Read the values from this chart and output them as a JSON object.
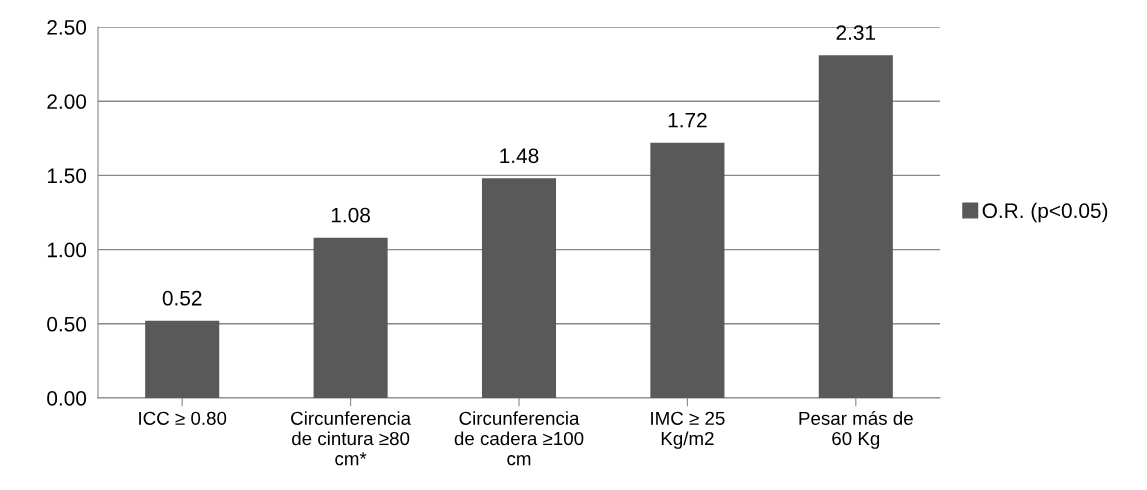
{
  "chart_data": {
    "type": "bar",
    "categories": [
      "ICC ≥ 0.80",
      "Circunferencia\nde cintura ≥80\ncm*",
      "Circunferencia\nde cadera ≥100\ncm",
      "IMC ≥ 25\nKg/m2",
      "Pesar más de\n60 Kg"
    ],
    "series": [
      {
        "name": "O.R. (p<0.05)",
        "color": "#595959",
        "values": [
          0.52,
          1.08,
          1.48,
          1.72,
          2.31
        ]
      }
    ],
    "value_labels": [
      "0.52",
      "1.08",
      "1.48",
      "1.72",
      "2.31"
    ],
    "ylim": [
      0,
      2.5
    ],
    "yticks": [
      {
        "value": 0,
        "label": "0.00"
      },
      {
        "value": 0.5,
        "label": "0.50"
      },
      {
        "value": 1,
        "label": "1.00"
      },
      {
        "value": 1.5,
        "label": "1.50"
      },
      {
        "value": 2,
        "label": "2.00"
      },
      {
        "value": 2.5,
        "label": "2.50"
      }
    ],
    "grid": "y",
    "legend": "right"
  }
}
